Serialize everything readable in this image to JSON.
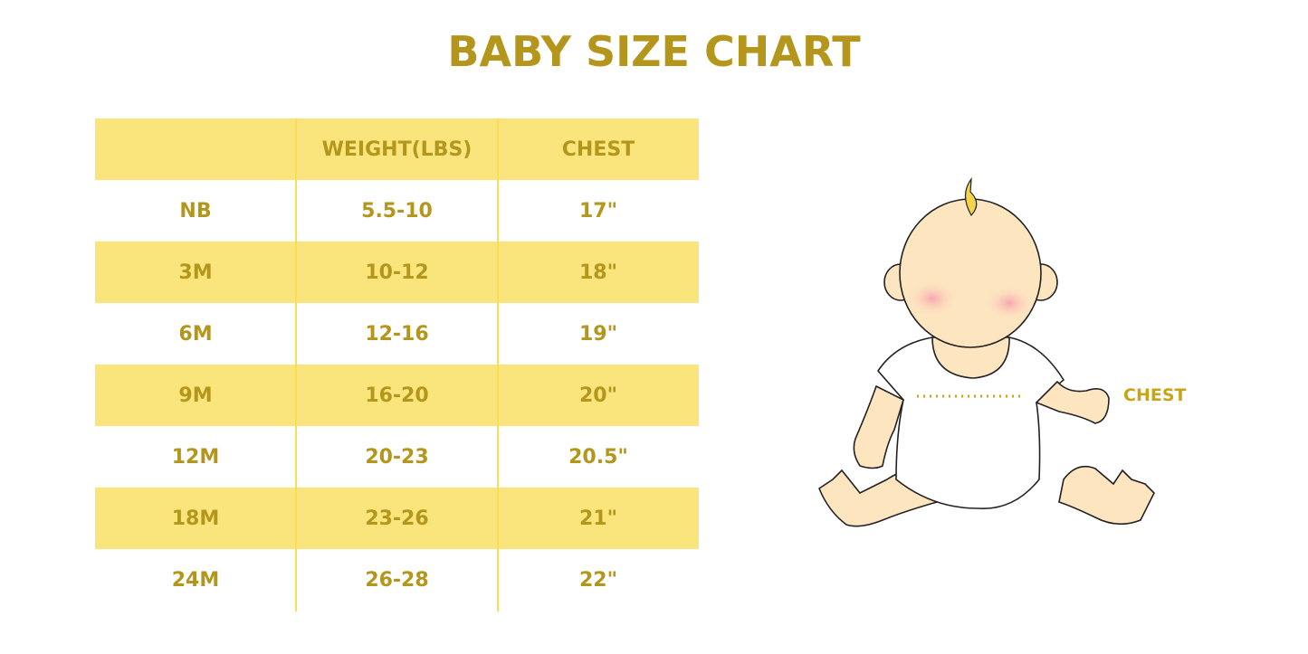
{
  "title": "BABY SIZE CHART",
  "table": {
    "headers": [
      "",
      "WEIGHT(LBS)",
      "CHEST"
    ],
    "rows": [
      [
        "NB",
        "5.5-10",
        "17\""
      ],
      [
        "3M",
        "10-12",
        "18\""
      ],
      [
        "6M",
        "12-16",
        "19\""
      ],
      [
        "9M",
        "16-20",
        "20\""
      ],
      [
        "12M",
        "20-23",
        "20.5\""
      ],
      [
        "18M",
        "23-26",
        "21\""
      ],
      [
        "24M",
        "26-28",
        "22\""
      ]
    ]
  },
  "illustration": {
    "chest_label": "CHEST"
  },
  "colors": {
    "text": "#b5961d",
    "stripe": "#fae57d",
    "skin": "#fde5c0"
  }
}
